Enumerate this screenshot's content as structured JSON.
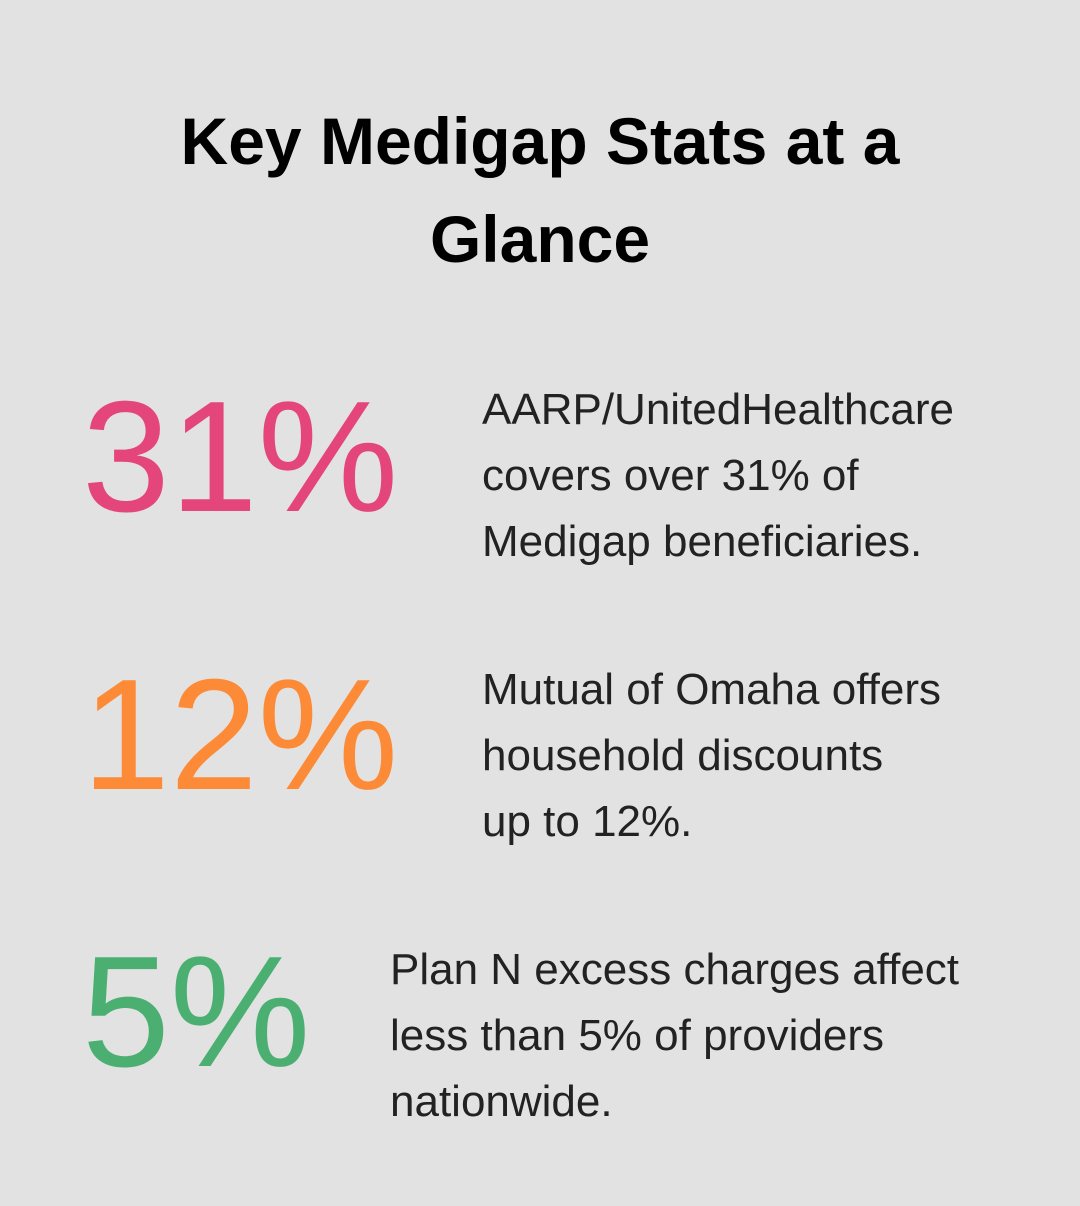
{
  "title": [
    "Key Medigap Stats at a",
    "Glance"
  ],
  "stats": [
    {
      "value": "31%",
      "color": "#e4457a",
      "description": [
        "AARP/UnitedHealthcare",
        "covers over 31% of",
        "Medigap beneficiaries."
      ]
    },
    {
      "value": "12%",
      "color": "#fd8a36",
      "description": [
        "Mutual of Omaha offers",
        "household discounts",
        "up to 12%."
      ]
    },
    {
      "value": "5%",
      "color": "#4caf72",
      "description": [
        "Plan N excess charges affect",
        "less than 5% of providers",
        "nationwide."
      ]
    }
  ]
}
